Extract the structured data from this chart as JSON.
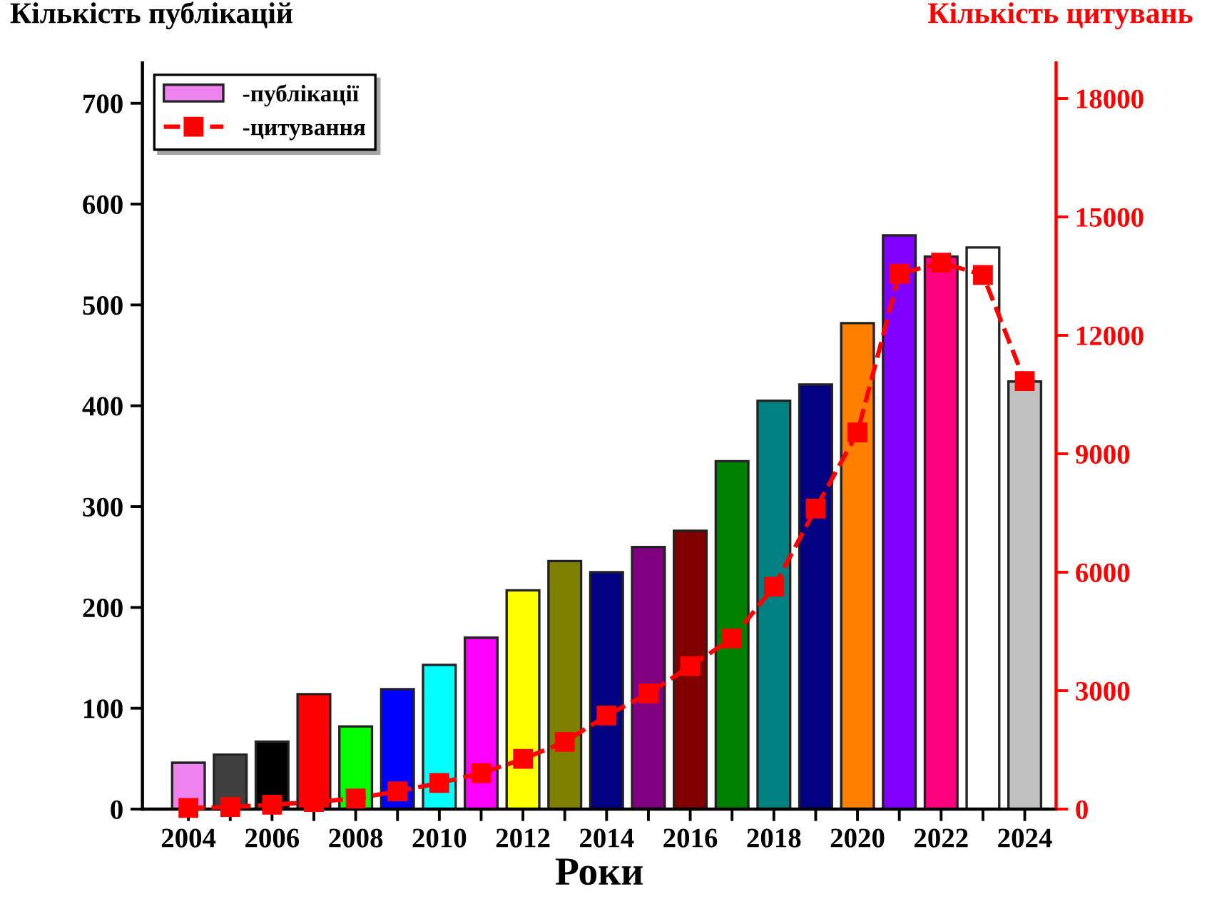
{
  "chart_data": {
    "type": "bar",
    "ylabel": "Кількість публікацій",
    "y2label": "Кількість цитувань",
    "xlabel": "Роки",
    "x": [
      2004,
      2005,
      2006,
      2007,
      2008,
      2009,
      2010,
      2011,
      2012,
      2013,
      2014,
      2015,
      2016,
      2017,
      2018,
      2019,
      2020,
      2021,
      2022,
      2023,
      2024
    ],
    "series": [
      {
        "name": "-публікації",
        "colors": [
          "#ee82ee",
          "#404040",
          "#000000",
          "#ff0000",
          "#00ff00",
          "#0000ff",
          "#00ffff",
          "#ff00ff",
          "#ffff00",
          "#808000",
          "#000080",
          "#800080",
          "#800000",
          "#008000",
          "#008080",
          "#000080",
          "#ff8000",
          "#8000ff",
          "#ff0080",
          "#ffffff",
          "#c0c0c0"
        ],
        "values": [
          46,
          54,
          67,
          114,
          82,
          119,
          143,
          170,
          217,
          246,
          235,
          260,
          276,
          345,
          405,
          421,
          482,
          569,
          548,
          557,
          424
        ]
      },
      {
        "name": "-цитування",
        "type": "line",
        "axis": "y2",
        "color": "#ff0000",
        "marker": "square",
        "line_style": "dashed",
        "values": [
          30,
          50,
          110,
          180,
          270,
          450,
          660,
          910,
          1270,
          1700,
          2370,
          2930,
          3620,
          4320,
          5630,
          7610,
          9540,
          13560,
          13840,
          13530,
          10840
        ]
      }
    ],
    "xlim": [
      2002.9,
      2024.75
    ],
    "xticks": [
      2004,
      {
        "value": 2005,
        "label": null
      },
      2006,
      {
        "value": 2007,
        "label": null
      },
      2008,
      {
        "value": 2009,
        "label": null
      },
      2010,
      {
        "value": 2011,
        "label": null
      },
      2012,
      {
        "value": 2013,
        "label": null
      },
      2014,
      {
        "value": 2015,
        "label": null
      },
      2016,
      {
        "value": 2017,
        "label": null
      },
      2018,
      {
        "value": 2019,
        "label": null
      },
      2020,
      {
        "value": 2021,
        "label": null
      },
      2022,
      {
        "value": 2023,
        "label": null
      },
      2024
    ],
    "ylim": [
      0,
      740
    ],
    "yticks": [
      0,
      100,
      200,
      300,
      400,
      500,
      600,
      700
    ],
    "y2lim": [
      0,
      18900
    ],
    "y2ticks": [
      0,
      3000,
      6000,
      9000,
      12000,
      15000,
      18000
    ],
    "legend": "top left",
    "grid": false
  }
}
